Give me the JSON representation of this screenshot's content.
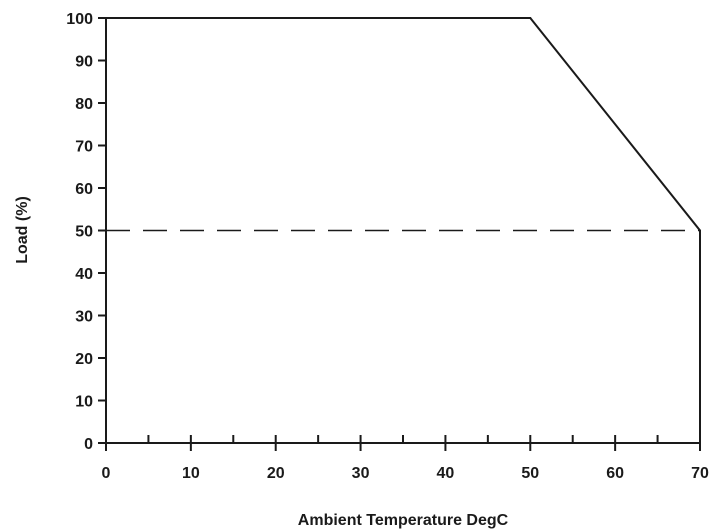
{
  "chart_data": {
    "type": "line",
    "title": "",
    "xlabel": "Ambient Temperature DegC",
    "ylabel": "Load (%)",
    "xlim": [
      0,
      70
    ],
    "ylim": [
      0,
      100
    ],
    "x_ticks": [
      0,
      10,
      20,
      30,
      40,
      50,
      60,
      70
    ],
    "x_minor_step": 5,
    "y_ticks": [
      0,
      10,
      20,
      30,
      40,
      50,
      60,
      70,
      80,
      90,
      100
    ],
    "grid": false,
    "legend": "none",
    "series": [
      {
        "style": "solid",
        "color": "#1a1a1a",
        "points": [
          [
            0,
            100
          ],
          [
            50,
            100
          ],
          [
            70,
            50
          ],
          [
            70,
            0
          ]
        ]
      }
    ],
    "reference_lines": [
      {
        "orientation": "horizontal",
        "y": 50,
        "x_range": [
          0,
          70
        ],
        "style": "dashed",
        "color": "#1a1a1a"
      }
    ]
  }
}
